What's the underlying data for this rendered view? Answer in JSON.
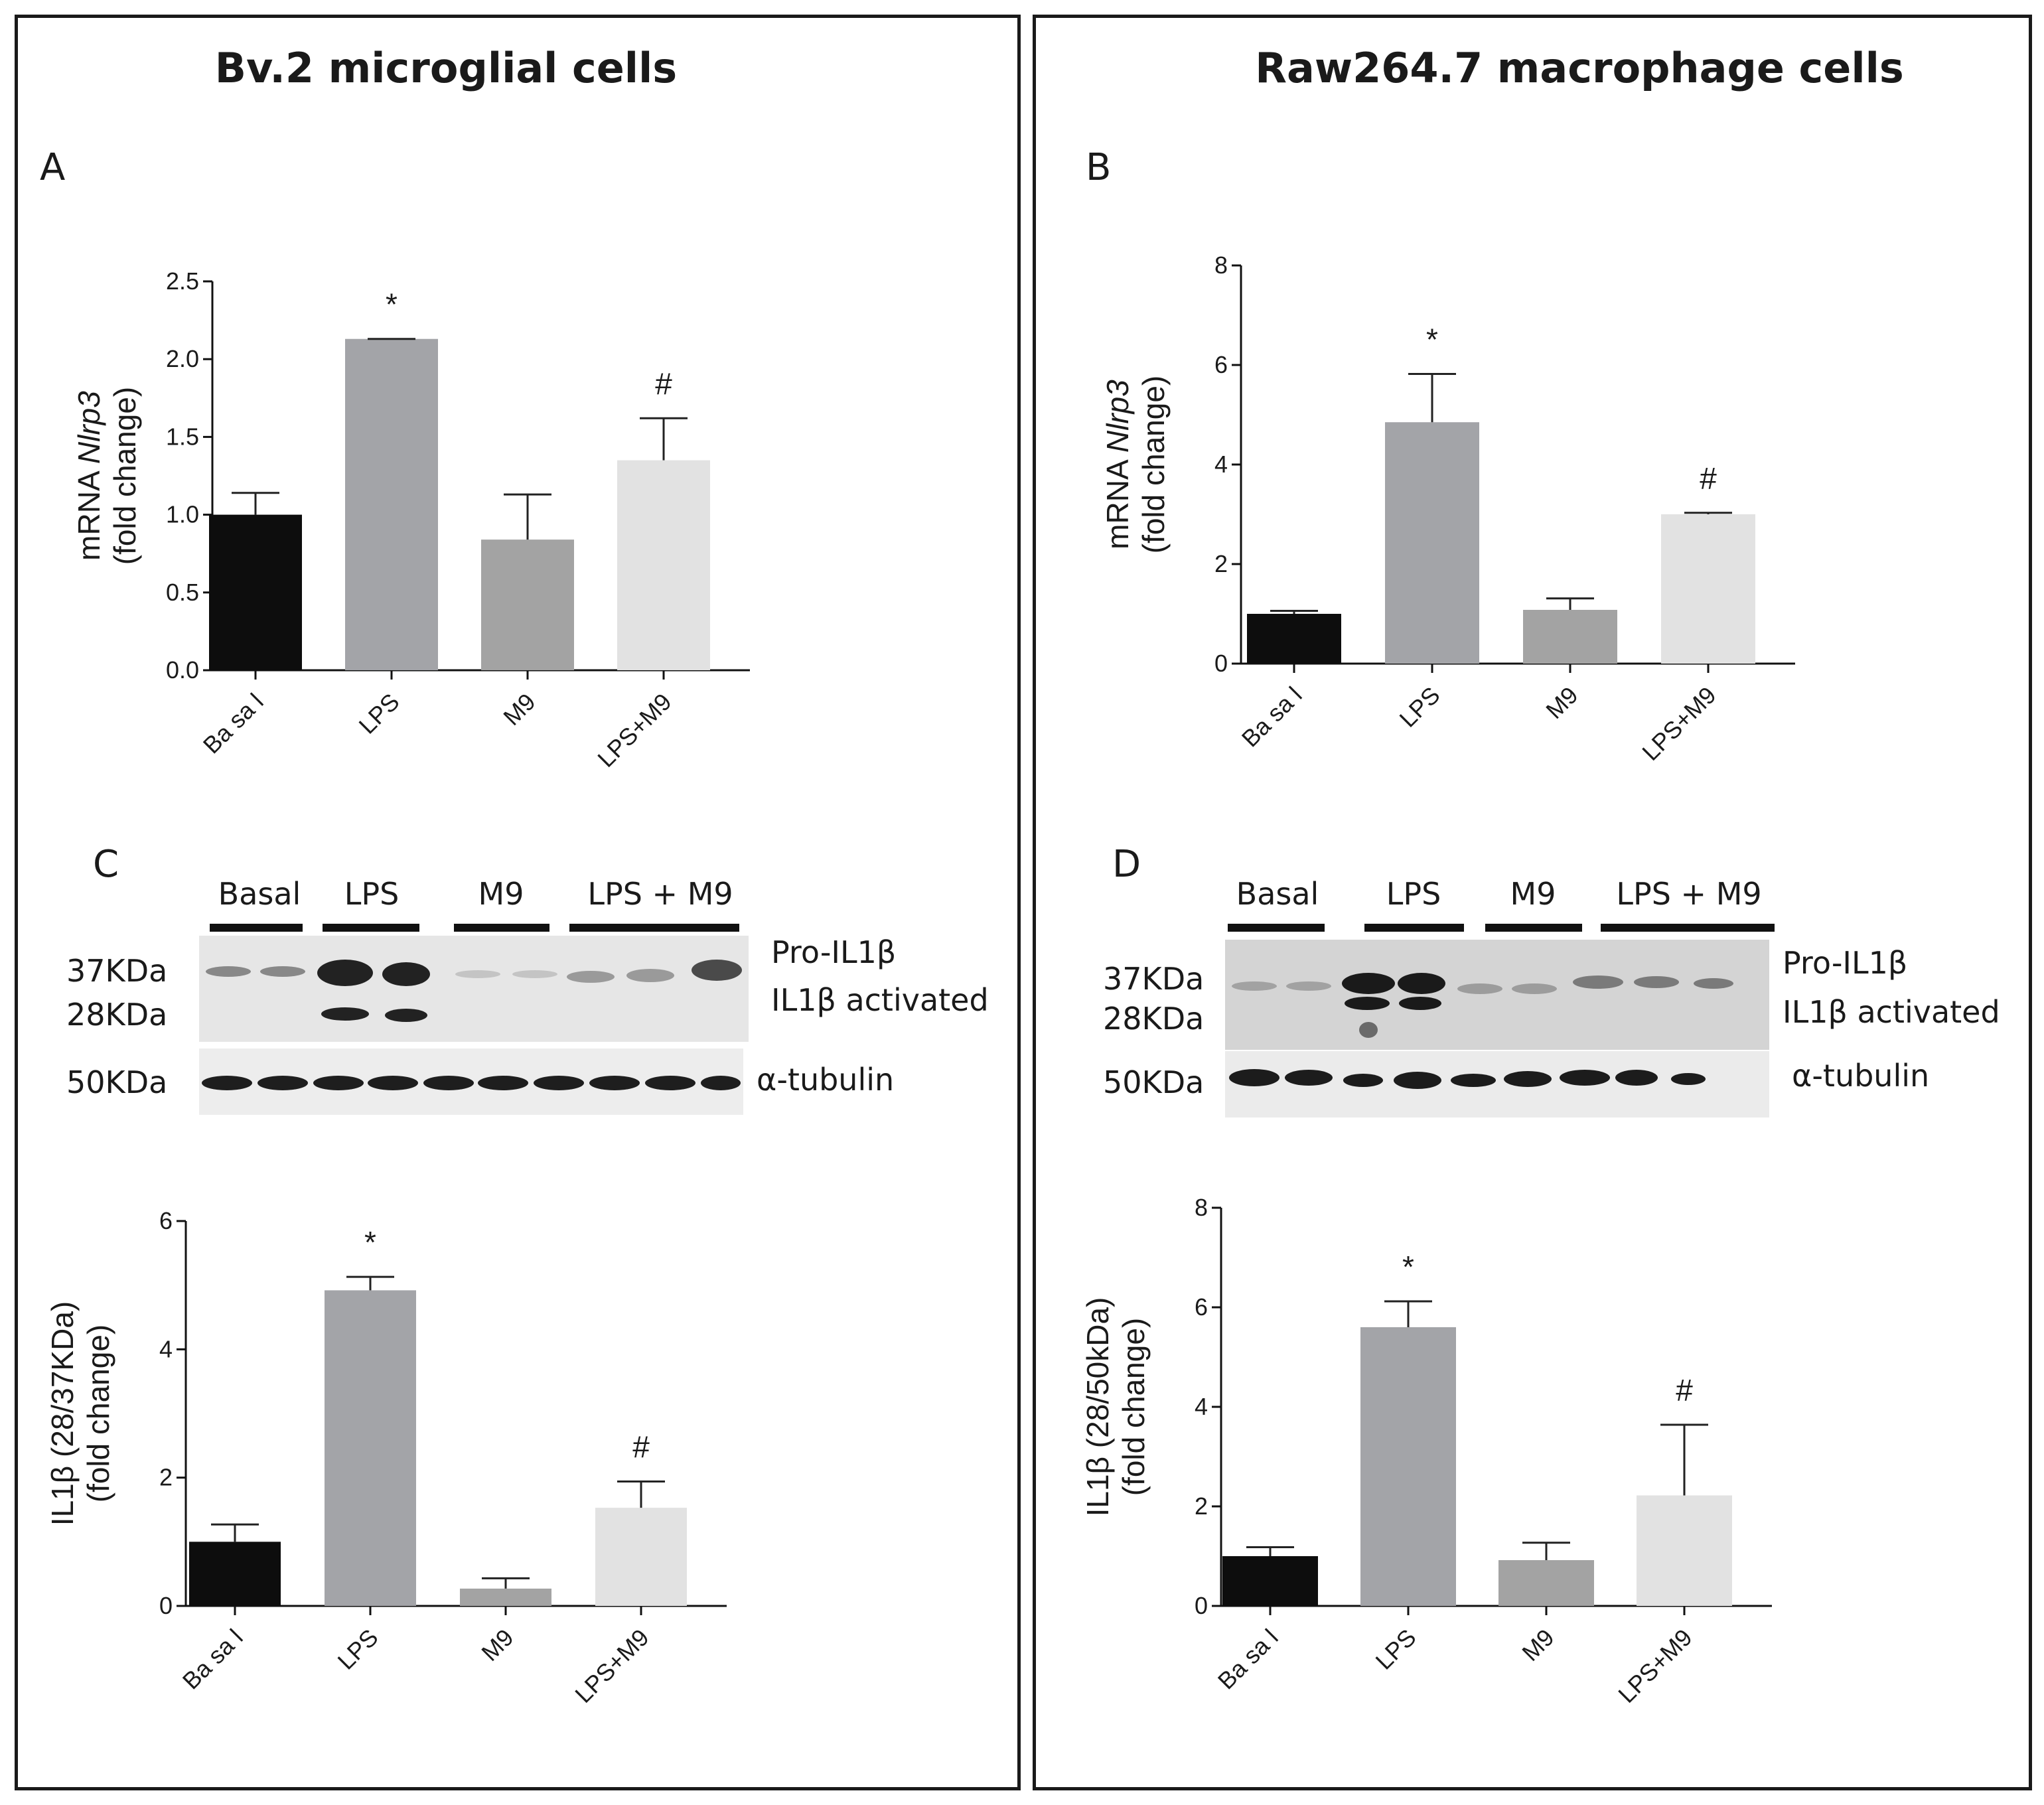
{
  "panels": {
    "left_title": "Bv.2 microglial  cells",
    "right_title": "Raw264.7 macrophage cells",
    "labels": {
      "A": "A",
      "B": "B",
      "C": "C",
      "D": "D"
    }
  },
  "blots": {
    "C": {
      "groups": [
        "Basal",
        "LPS",
        "M9",
        "LPS + M9"
      ],
      "mw_top": [
        "37KDa",
        "28KDa"
      ],
      "mw_bottom": "50KDa",
      "bands_right": [
        "Pro-IL1β",
        "IL1β activated"
      ],
      "loading": "α-tubulin"
    },
    "D": {
      "groups": [
        "Basal",
        "LPS",
        "M9",
        "LPS + M9"
      ],
      "mw_top": [
        "37KDa",
        "28KDa"
      ],
      "mw_bottom": "50KDa",
      "bands_right": [
        "Pro-IL1β",
        "IL1β activated"
      ],
      "loading": "α-tubulin"
    }
  },
  "chart_data": [
    {
      "id": "A",
      "type": "bar",
      "categories": [
        "Ba sa l",
        "LPS",
        "M9",
        "LPS+M9"
      ],
      "values": [
        1.0,
        2.13,
        0.84,
        1.35
      ],
      "errors": [
        0.14,
        0.0,
        0.29,
        0.27
      ],
      "annotations": [
        "",
        "*",
        "",
        "#"
      ],
      "colors": [
        "#0d0d0d",
        "#a3a4a8",
        "#a3a3a3",
        "#e2e2e2"
      ],
      "ylabel_prefix": "mRNA ",
      "ylabel_gene": "Nlrp3",
      "ylabel_line2": "(fold change)",
      "ylim": [
        0,
        2.5
      ],
      "ticks": [
        "0.0",
        "0.5",
        "1.0",
        "1.5",
        "2.0",
        "2.5"
      ]
    },
    {
      "id": "B",
      "type": "bar",
      "categories": [
        "Ba sa l",
        "LPS",
        "M9",
        "LPS+M9"
      ],
      "values": [
        1.0,
        4.85,
        1.08,
        3.0
      ],
      "errors": [
        0.06,
        0.97,
        0.23,
        0.03
      ],
      "annotations": [
        "",
        "*",
        "",
        "#"
      ],
      "colors": [
        "#0d0d0d",
        "#a3a4a8",
        "#a3a3a3",
        "#e2e2e2"
      ],
      "ylabel_prefix": "mRNA ",
      "ylabel_gene": "Nlrp3",
      "ylabel_line2": "(fold change)",
      "ylim": [
        0,
        8
      ],
      "ticks": [
        "0",
        "2",
        "4",
        "6",
        "8"
      ]
    },
    {
      "id": "C",
      "type": "bar",
      "categories": [
        "Ba sa l",
        "LPS",
        "M9",
        "LPS+M9"
      ],
      "values": [
        1.0,
        4.92,
        0.27,
        1.53
      ],
      "errors": [
        0.27,
        0.21,
        0.16,
        0.41
      ],
      "annotations": [
        "",
        "*",
        "",
        "#"
      ],
      "colors": [
        "#0d0d0d",
        "#a3a4a8",
        "#a3a3a3",
        "#e2e2e2"
      ],
      "ylabel_prefix": "IL1β (28/37KDa)",
      "ylabel_gene": "",
      "ylabel_line2": "(fold change)",
      "ylim": [
        0,
        6
      ],
      "ticks": [
        "0",
        "2",
        "4",
        "6"
      ]
    },
    {
      "id": "D",
      "type": "bar",
      "categories": [
        "Ba sa l",
        "LPS",
        "M9",
        "LPS+M9"
      ],
      "values": [
        1.0,
        5.6,
        0.92,
        2.22
      ],
      "errors": [
        0.18,
        0.52,
        0.35,
        1.42
      ],
      "annotations": [
        "",
        "*",
        "",
        "#"
      ],
      "colors": [
        "#0d0d0d",
        "#a3a4a8",
        "#a3a3a3",
        "#e2e2e2"
      ],
      "ylabel_prefix": "IL1β (28/50kDa)",
      "ylabel_gene": "",
      "ylabel_line2": "(fold change)",
      "ylim": [
        0,
        8
      ],
      "ticks": [
        "0",
        "2",
        "4",
        "6",
        "8"
      ]
    }
  ]
}
